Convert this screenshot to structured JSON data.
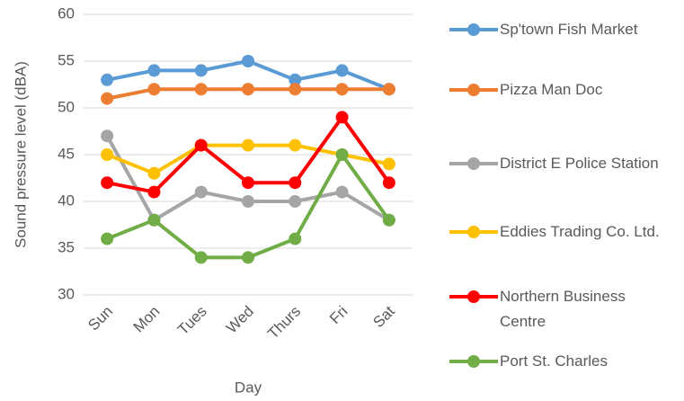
{
  "chart_data": {
    "type": "line",
    "x_label": "Day",
    "y_label": "Sound pressure level (dBA)",
    "categories": [
      "Sun",
      "Mon",
      "Tues",
      "Wed",
      "Thurs",
      "Fri",
      "Sat"
    ],
    "series": [
      {
        "name": "Sp'town Fish Market",
        "color": "#5b9bd5",
        "values": [
          53,
          54,
          54,
          55,
          53,
          54,
          52
        ]
      },
      {
        "name": "Pizza Man Doc",
        "color": "#ed7d31",
        "values": [
          51,
          52,
          52,
          52,
          52,
          52,
          52
        ]
      },
      {
        "name": "District E Police Station",
        "color": "#a5a5a5",
        "values": [
          47,
          38,
          41,
          40,
          40,
          41,
          38
        ]
      },
      {
        "name": "Eddies Trading Co. Ltd.",
        "color": "#ffc000",
        "values": [
          45,
          43,
          46,
          46,
          46,
          45,
          44
        ]
      },
      {
        "name": "Northern Business Centre",
        "color": "#ff0000",
        "values": [
          42,
          41,
          46,
          42,
          42,
          49,
          42
        ]
      },
      {
        "name": "Port St. Charles",
        "color": "#70ad47",
        "values": [
          36,
          38,
          34,
          34,
          36,
          45,
          38
        ]
      }
    ],
    "ylim": [
      30,
      60
    ],
    "yticks": [
      30,
      35,
      40,
      45,
      50,
      55,
      60
    ],
    "grid": true,
    "legend": "right"
  }
}
